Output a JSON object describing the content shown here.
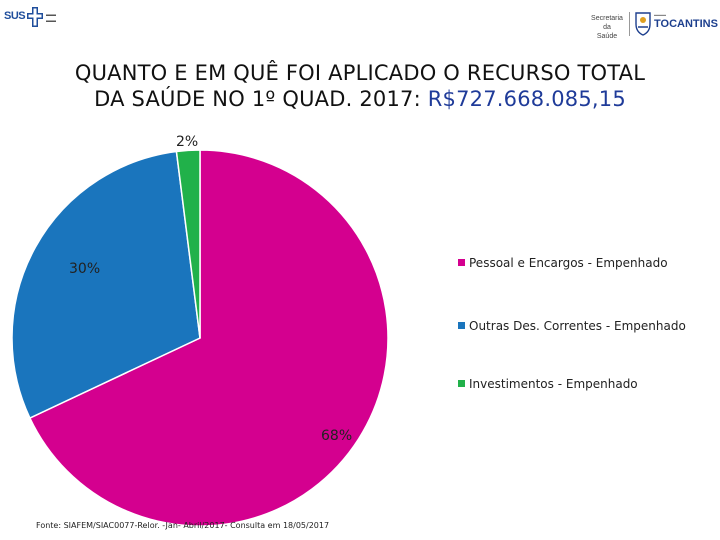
{
  "header": {
    "left_logo": {
      "text": "SUS",
      "icon": "sus-cross-icon"
    },
    "right_logo": {
      "secretaria_line1": "Secretaria da",
      "secretaria_line2": "Saúde",
      "state": "TOCANTINS",
      "icon": "tocantins-emblem-icon"
    }
  },
  "title": {
    "line1": "QUANTO E EM QUÊ FOI APLICADO O RECURSO TOTAL",
    "line2_prefix": "DA SAÚDE NO 1º QUAD. 2017: ",
    "amount": "R$727.668.085,15"
  },
  "chart_data": {
    "type": "pie",
    "start_angle_deg": 0,
    "direction": "clockwise",
    "slices": [
      {
        "name": "Pessoal e Encargos - Empenhado",
        "value": 68,
        "label": "68%",
        "color": "#d4008f"
      },
      {
        "name": "Outras Des. Correntes - Empenhado",
        "value": 30,
        "label": "30%",
        "color": "#1a75bd"
      },
      {
        "name": "Investimentos - Empenhado",
        "value": 2,
        "label": "2%",
        "color": "#21b14a"
      }
    ],
    "legend": {
      "position": "right",
      "items": [
        "Pessoal e Encargos - Empenhado",
        "Outras Des. Correntes - Empenhado",
        "Investimentos - Empenhado"
      ]
    }
  },
  "footer": {
    "source": "Fonte: SIAFEM/SIAC0077-Relor. -Jan- Abril/2017- Consulta em 18/05/2017"
  }
}
